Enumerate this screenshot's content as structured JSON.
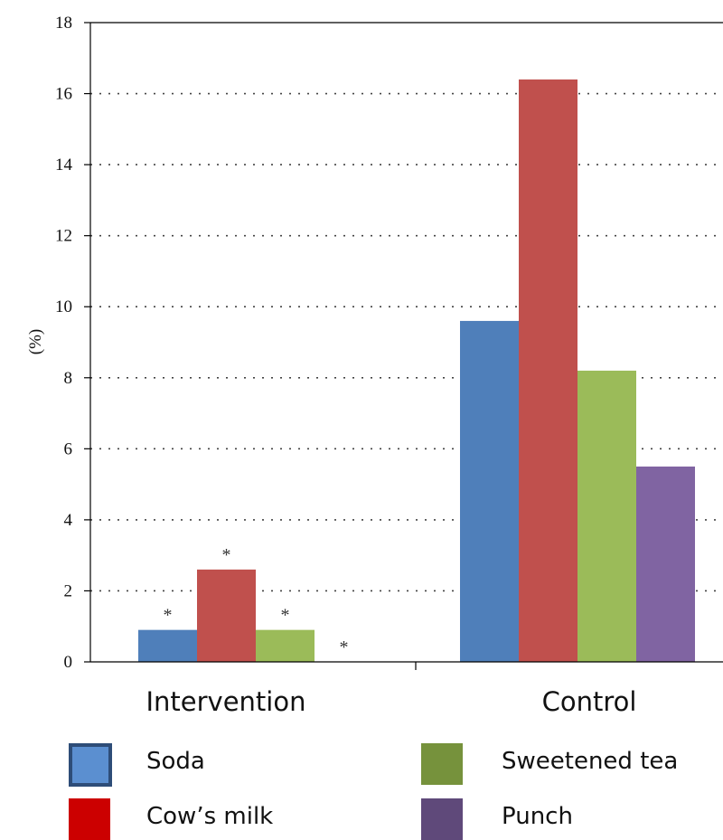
{
  "chart_data": {
    "type": "bar",
    "ylabel": "(%)",
    "ylim": [
      0,
      18
    ],
    "yticks": [
      "0",
      "2",
      "4",
      "6",
      "8",
      "10",
      "12",
      "14",
      "16",
      "18"
    ],
    "grid": true,
    "categories": [
      "Intervention",
      "Control"
    ],
    "series": [
      {
        "name": "Soda",
        "values": [
          0.9,
          9.6
        ],
        "color": "#4f7fba",
        "legend_color": "#5b8fd0",
        "legend_border": "#2e4d78"
      },
      {
        "name": "Cow’s milk",
        "values": [
          2.6,
          16.4
        ],
        "color": "#c0504d",
        "legend_color": "#cc0000"
      },
      {
        "name": "Sweetened tea",
        "values": [
          0.9,
          8.2
        ],
        "color": "#9bbb59",
        "legend_color": "#76923c"
      },
      {
        "name": "Punch",
        "values": [
          0.0,
          5.5
        ],
        "color": "#8064a2",
        "legend_color": "#5f497a"
      }
    ],
    "annotations": [
      {
        "category": "Intervention",
        "series": "Soda",
        "text": "*"
      },
      {
        "category": "Intervention",
        "series": "Cow’s milk",
        "text": "*"
      },
      {
        "category": "Intervention",
        "series": "Sweetened tea",
        "text": "*"
      },
      {
        "category": "Intervention",
        "series": "Punch",
        "text": "*"
      }
    ],
    "legend_placement": "bottom"
  }
}
